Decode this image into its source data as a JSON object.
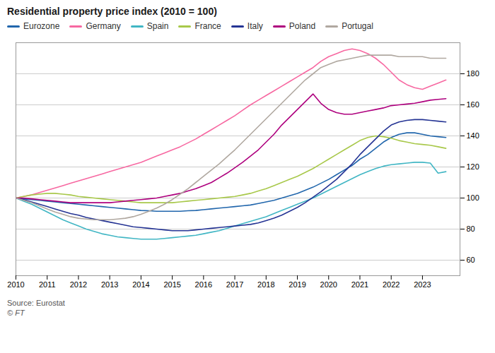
{
  "chart_data": {
    "type": "line",
    "title": "Residential property price index (2010 = 100)",
    "annotations": [
      "Source: Eurostat",
      "© FT"
    ],
    "x": [
      2010,
      2010.25,
      2010.5,
      2010.75,
      2011,
      2011.25,
      2011.5,
      2011.75,
      2012,
      2012.25,
      2012.5,
      2012.75,
      2013,
      2013.25,
      2013.5,
      2013.75,
      2014,
      2014.25,
      2014.5,
      2014.75,
      2015,
      2015.25,
      2015.5,
      2015.75,
      2016,
      2016.25,
      2016.5,
      2016.75,
      2017,
      2017.25,
      2017.5,
      2017.75,
      2018,
      2018.25,
      2018.5,
      2018.75,
      2019,
      2019.25,
      2019.5,
      2019.75,
      2020,
      2020.25,
      2020.5,
      2020.75,
      2021,
      2021.25,
      2021.5,
      2021.75,
      2022,
      2022.25,
      2022.5,
      2022.75,
      2023,
      2023.25,
      2023.5,
      2023.75
    ],
    "series": [
      {
        "name": "Eurozone",
        "color": "#2166ac",
        "values": [
          100,
          99.5,
          99,
          98.5,
          98,
          97.5,
          97,
          96.5,
          96,
          95.5,
          95,
          94.5,
          94,
          93.5,
          93,
          92.5,
          92,
          91.8,
          91.5,
          91.5,
          91.5,
          91.5,
          91.8,
          92,
          92.5,
          93,
          93.5,
          94,
          94.5,
          95,
          95.5,
          96.5,
          97.5,
          98.5,
          100,
          101.5,
          103,
          105,
          107,
          109.5,
          112,
          115,
          118,
          121,
          125,
          128,
          132,
          136,
          139,
          141,
          142,
          142,
          141,
          140,
          139.5,
          139
        ]
      },
      {
        "name": "Germany",
        "color": "#f768a1",
        "values": [
          100,
          101,
          102,
          103.5,
          105,
          106.5,
          108,
          109.5,
          111,
          112.5,
          114,
          115.5,
          117,
          118.5,
          120,
          121.5,
          123,
          125,
          127,
          129,
          131,
          133,
          135.5,
          138,
          141,
          144,
          147,
          150,
          153,
          156.5,
          160,
          163,
          166,
          169,
          172,
          175,
          178,
          181,
          184,
          188,
          191,
          193,
          195,
          196,
          195,
          193,
          190,
          186,
          181,
          176,
          173,
          171,
          170,
          172,
          174,
          176
        ]
      },
      {
        "name": "Spain",
        "color": "#41b6c4",
        "values": [
          100,
          98,
          96,
          93.5,
          91,
          88.5,
          86,
          84,
          82,
          80,
          78.5,
          77,
          76,
          75,
          74.5,
          74,
          73.5,
          73.5,
          73.5,
          74,
          74.5,
          75,
          75.5,
          76,
          77,
          78,
          79,
          80.5,
          82,
          83.5,
          85,
          86.5,
          88,
          90,
          92,
          94,
          96,
          98,
          100,
          102.5,
          105,
          107.5,
          110,
          112.5,
          115,
          117,
          119,
          120.5,
          121.5,
          122,
          122.5,
          123,
          123,
          122.5,
          116,
          117
        ]
      },
      {
        "name": "France",
        "color": "#a8c84a",
        "values": [
          100,
          101,
          102,
          102.5,
          103,
          103,
          102.5,
          102,
          101,
          100.5,
          100,
          99.5,
          99,
          98.5,
          98,
          97.5,
          97,
          97,
          97,
          97,
          97,
          97.5,
          98,
          98.5,
          99,
          99.5,
          100,
          100.5,
          101,
          102,
          103,
          104.5,
          106,
          108,
          110,
          112,
          114,
          116.5,
          119,
          122,
          125,
          128,
          131,
          134,
          137,
          139,
          140,
          139.5,
          138.5,
          137,
          136,
          135,
          134.5,
          134,
          133,
          132
        ]
      },
      {
        "name": "Italy",
        "color": "#253494",
        "values": [
          100,
          99,
          97.5,
          96,
          94.5,
          93,
          91.5,
          90,
          89,
          87.5,
          86.5,
          85.5,
          84.5,
          83.5,
          82.5,
          81.5,
          81,
          80.5,
          80,
          79.5,
          79,
          79,
          79,
          79.5,
          80,
          80.5,
          81,
          81.5,
          82,
          82.5,
          83,
          84,
          85.5,
          87,
          89,
          91.5,
          94,
          97,
          100.5,
          104,
          108,
          112,
          117,
          122,
          128,
          133,
          138,
          143,
          147,
          149,
          150,
          150.5,
          150.5,
          150,
          149.5,
          149
        ]
      },
      {
        "name": "Poland",
        "color": "#ae017e",
        "values": [
          100,
          100,
          99.5,
          99,
          98.5,
          98,
          97.5,
          97,
          97,
          97,
          97,
          97,
          97,
          97.5,
          98,
          98.5,
          99,
          99.5,
          100,
          101,
          102,
          103,
          104.5,
          106,
          108,
          110,
          113,
          116,
          119.5,
          123,
          127,
          131,
          136,
          141,
          147,
          152,
          157,
          162,
          167,
          161,
          157,
          155,
          154,
          154,
          155,
          156,
          157,
          158,
          159.5,
          160,
          160.5,
          161,
          162,
          163,
          163.5,
          164
        ]
      },
      {
        "name": "Portugal",
        "color": "#b0a8a0",
        "values": [
          100,
          98.5,
          97,
          95,
          93,
          91,
          89.5,
          88,
          87,
          86.5,
          86,
          86,
          86,
          86.5,
          87,
          88,
          89.5,
          91.5,
          93.5,
          96,
          99,
          102.5,
          106,
          110,
          114,
          118,
          122,
          126.5,
          131,
          136,
          141,
          146,
          151,
          156,
          161,
          166,
          171,
          176,
          180,
          184,
          186,
          188,
          189,
          190,
          191,
          192,
          192,
          192,
          192,
          191,
          191,
          191,
          191,
          190,
          190,
          190
        ]
      }
    ],
    "xlim": [
      2010,
      2024.2
    ],
    "xticks": [
      2010,
      2011,
      2012,
      2013,
      2014,
      2015,
      2016,
      2017,
      2018,
      2019,
      2020,
      2021,
      2022,
      2023
    ],
    "ylim": [
      50,
      200
    ],
    "yticks": [
      60,
      80,
      100,
      120,
      140,
      160,
      180
    ],
    "grid": true,
    "legend": "top"
  }
}
